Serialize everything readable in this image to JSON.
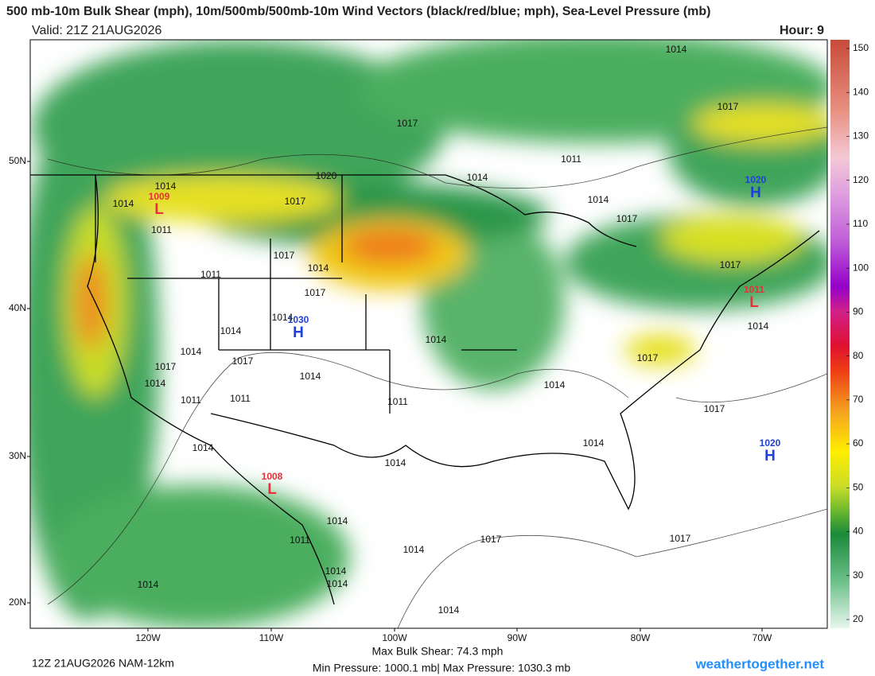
{
  "header": {
    "title": "500 mb-10m Bulk Shear (mph), 10m/500mb/500mb-10m Wind Vectors (black/red/blue; mph), Sea-Level Pressure (mb)",
    "valid": "Valid: 21Z 21AUG2026",
    "hour": "Hour: 9"
  },
  "map": {
    "lat_labels": [
      "50N",
      "40N",
      "30N",
      "20N"
    ],
    "lon_labels": [
      "120W",
      "110W",
      "100W",
      "90W",
      "80W",
      "70W"
    ],
    "isobar_labels": [
      "1014",
      "1017",
      "1011",
      "1014",
      "1020",
      "1017",
      "1014",
      "1014",
      "1011",
      "1017",
      "1014",
      "1011",
      "1017",
      "1014",
      "1014",
      "1014",
      "1017",
      "1014",
      "1017",
      "1014",
      "1011",
      "1011",
      "1011",
      "1014",
      "1014",
      "1014",
      "1014",
      "1014",
      "1011",
      "1014",
      "1014",
      "1014",
      "1014",
      "1017",
      "1017",
      "1014",
      "1014",
      "1017",
      "1017",
      "1014",
      "1017",
      "1014",
      "1017",
      "1017"
    ],
    "centers": [
      {
        "letter": "L",
        "value": "1009"
      },
      {
        "letter": "L",
        "value": "1011"
      },
      {
        "letter": "H",
        "value": "1030"
      },
      {
        "letter": "H",
        "value": "1020"
      },
      {
        "letter": "H",
        "value": "1020"
      },
      {
        "letter": "L",
        "value": "1008"
      }
    ]
  },
  "colorbar": {
    "ticks": [
      150,
      140,
      130,
      120,
      110,
      100,
      90,
      80,
      70,
      60,
      50,
      40,
      30,
      20
    ]
  },
  "footer": {
    "run": "12Z 21AUG2026 NAM-12km",
    "max_shear": "Max Bulk Shear:  74.3 mph",
    "pressure": "Min Pressure: 1000.1 mb| Max Pressure: 1030.3 mb",
    "site": "weathertogether.net"
  }
}
